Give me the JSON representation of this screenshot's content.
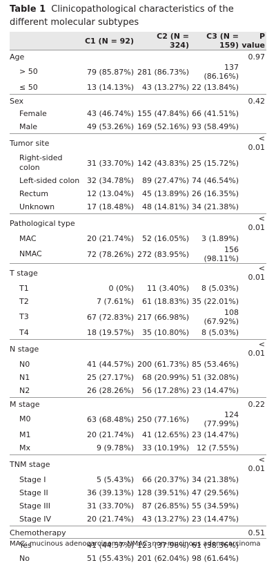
{
  "caption": {
    "label": "Table 1",
    "text": "Clinicopathological characteristics of the different molecular subtypes"
  },
  "header": {
    "col0": "",
    "c1": "C1 (N = 92)",
    "c2": "C2 (N = 324)",
    "c3": "C3 (N = 159)",
    "pvalue": "P value"
  },
  "groups": [
    {
      "label": "Age",
      "p": "0.97",
      "rows": [
        {
          "label": "> 50",
          "c1": "79 (85.87%)",
          "c2": "281 (86.73%)",
          "c3": "137 (86.16%)"
        },
        {
          "label": "≤ 50",
          "c1": "13 (14.13%)",
          "c2": "43 (13.27%)",
          "c3": "22 (13.84%)"
        }
      ]
    },
    {
      "label": "Sex",
      "p": "0.42",
      "rows": [
        {
          "label": "Female",
          "c1": "43 (46.74%)",
          "c2": "155 (47.84%)",
          "c3": "66 (41.51%)"
        },
        {
          "label": "Male",
          "c1": "49 (53.26%)",
          "c2": "169 (52.16%)",
          "c3": "93 (58.49%)"
        }
      ]
    },
    {
      "label": "Tumor site",
      "p": "< 0.01",
      "rows": [
        {
          "label": "Right-sided colon",
          "c1": "31 (33.70%)",
          "c2": "142 (43.83%)",
          "c3": "25 (15.72%)",
          "tall": true
        },
        {
          "label": "Left-sided colon",
          "c1": "32 (34.78%)",
          "c2": "89 (27.47%)",
          "c3": "74 (46.54%)"
        },
        {
          "label": "Rectum",
          "c1": "12 (13.04%)",
          "c2": "45 (13.89%)",
          "c3": "26 (16.35%)"
        },
        {
          "label": "Unknown",
          "c1": "17 (18.48%)",
          "c2": "48 (14.81%)",
          "c3": "34 (21.38%)"
        }
      ]
    },
    {
      "label": "Pathological type",
      "p": "< 0.01",
      "rows": [
        {
          "label": "MAC",
          "c1": "20 (21.74%)",
          "c2": "52 (16.05%)",
          "c3": "3 (1.89%)"
        },
        {
          "label": "NMAC",
          "c1": "72 (78.26%)",
          "c2": "272 (83.95%)",
          "c3": "156 (98.11%)"
        }
      ]
    },
    {
      "label": "T stage",
      "p": "< 0.01",
      "rows": [
        {
          "label": "T1",
          "c1": "0 (0%)",
          "c2": "11 (3.40%)",
          "c3": "8 (5.03%)"
        },
        {
          "label": "T2",
          "c1": "7 (7.61%)",
          "c2": "61 (18.83%)",
          "c3": "35 (22.01%)"
        },
        {
          "label": "T3",
          "c1": "67 (72.83%)",
          "c2": "217 (66.98%)",
          "c3": "108 (67.92%)"
        },
        {
          "label": "T4",
          "c1": "18 (19.57%)",
          "c2": "35 (10.80%)",
          "c3": "8 (5.03%)"
        }
      ]
    },
    {
      "label": "N stage",
      "p": "< 0.01",
      "rows": [
        {
          "label": "N0",
          "c1": "41 (44.57%)",
          "c2": "200 (61.73%)",
          "c3": "85 (53.46%)"
        },
        {
          "label": "N1",
          "c1": "25 (27.17%)",
          "c2": "68 (20.99%)",
          "c3": "51 (32.08%)"
        },
        {
          "label": "N2",
          "c1": "26 (28.26%)",
          "c2": "56 (17.28%)",
          "c3": "23 (14.47%)"
        }
      ]
    },
    {
      "label": "M stage",
      "p": "0.22",
      "rows": [
        {
          "label": "M0",
          "c1": "63 (68.48%)",
          "c2": "250 (77.16%)",
          "c3": "124 (77.99%)"
        },
        {
          "label": "M1",
          "c1": "20 (21.74%)",
          "c2": "41 (12.65%)",
          "c3": "23 (14.47%)"
        },
        {
          "label": "Mx",
          "c1": "9 (9.78%)",
          "c2": "33 (10.19%)",
          "c3": "12 (7.55%)"
        }
      ]
    },
    {
      "label": "TNM stage",
      "p": "< 0.01",
      "rows": [
        {
          "label": "Stage I",
          "c1": "5 (5.43%)",
          "c2": "66 (20.37%)",
          "c3": "34 (21.38%)"
        },
        {
          "label": "Stage II",
          "c1": "36 (39.13%)",
          "c2": "128 (39.51%)",
          "c3": "47 (29.56%)"
        },
        {
          "label": "Stage III",
          "c1": "31 (33.70%)",
          "c2": "87 (26.85%)",
          "c3": "55 (34.59%)"
        },
        {
          "label": "Stage IV",
          "c1": "20 (21.74%)",
          "c2": "43 (13.27%)",
          "c3": "23 (14.47%)"
        }
      ]
    },
    {
      "label": "Chemotherapy",
      "p": "0.51",
      "rows": [
        {
          "label": "Yes",
          "c1": "41 (44.57%)",
          "c2": "123 (37.96%)",
          "c3": "61 (38.36%)"
        },
        {
          "label": "No",
          "c1": "51 (55.43%)",
          "c2": "201 (62.04%)",
          "c3": "98 (61.64%)"
        }
      ]
    }
  ],
  "footnote": "MAC: mucinous adenocarcinoma; NMAC: non-mucinous adenocarcinoma"
}
